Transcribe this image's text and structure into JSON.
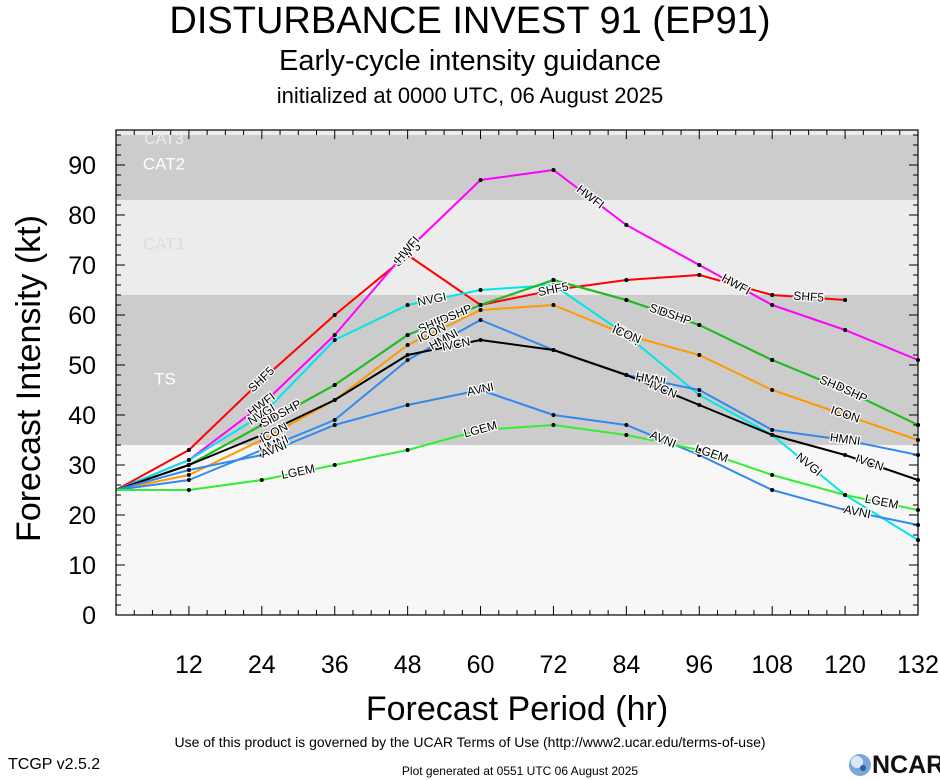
{
  "header": {
    "title": "DISTURBANCE INVEST 91 (EP91)",
    "subtitle": "Early-cycle intensity guidance",
    "init_line": "initialized at 0000 UTC, 06 August 2025"
  },
  "footer": {
    "terms": "Use of this product is governed by the UCAR Terms of Use (http://www2.ucar.edu/terms-of-use)",
    "version": "TCGP v2.5.2",
    "generated": "Plot generated at 0551 UTC   06 August 2025",
    "logo_text": "NCAR"
  },
  "chart_data": {
    "type": "line",
    "title": "DISTURBANCE INVEST 91 (EP91)",
    "subtitle": "Early-cycle intensity guidance",
    "xlabel": "Forecast Period (hr)",
    "ylabel": "Forecast Intensity (kt)",
    "xlim": [
      0,
      132
    ],
    "ylim": [
      0,
      97
    ],
    "xticks": [
      12,
      24,
      36,
      48,
      60,
      72,
      84,
      96,
      108,
      120,
      132
    ],
    "yticks": [
      0,
      10,
      20,
      30,
      40,
      50,
      60,
      70,
      80,
      90
    ],
    "bands": [
      {
        "label": "TS",
        "y0": 34,
        "y1": 64,
        "color": "#cccccc"
      },
      {
        "label": "CAT1",
        "y0": 64,
        "y1": 83,
        "color": "#ececec"
      },
      {
        "label": "CAT2",
        "y0": 83,
        "y1": 96,
        "color": "#cccccc"
      },
      {
        "label": "CAT3",
        "y0": 96,
        "y1": 97,
        "color": "#ececec"
      }
    ],
    "below_band_color": "#f7f7f7",
    "series": [
      {
        "name": "SHF5",
        "color": "#ff0000",
        "x": [
          0,
          12,
          24,
          36,
          48,
          60,
          72,
          84,
          96,
          108,
          120
        ],
        "y": [
          25,
          33,
          47,
          60,
          72,
          62,
          65,
          67,
          68,
          64,
          63
        ],
        "label_at": [
          24,
          48,
          72,
          114
        ]
      },
      {
        "name": "HWFI",
        "color": "#ff00ff",
        "x": [
          0,
          12,
          24,
          36,
          48,
          60,
          72,
          84,
          96,
          108,
          120,
          132
        ],
        "y": [
          25,
          31,
          42,
          56,
          73,
          87,
          89,
          78,
          70,
          62,
          57,
          51
        ],
        "label_at": [
          24,
          48,
          78,
          102
        ]
      },
      {
        "name": "NVGI",
        "color": "#00e6e6",
        "x": [
          0,
          12,
          24,
          36,
          48,
          60,
          72,
          84,
          96,
          108,
          120,
          132
        ],
        "y": [
          25,
          31,
          40,
          55,
          62,
          65,
          66,
          56,
          44,
          36,
          24,
          15
        ],
        "label_at": [
          24,
          52,
          84,
          114
        ]
      },
      {
        "name": "SHIP",
        "color": "#22bb22",
        "x": [
          0,
          12,
          24,
          36,
          48,
          60,
          72,
          84,
          96,
          108,
          120,
          132
        ],
        "y": [
          25,
          30,
          38,
          46,
          56,
          62,
          67,
          63,
          58,
          51,
          45,
          38
        ],
        "label_at": [
          26,
          52,
          90,
          118
        ]
      },
      {
        "name": "DSHP",
        "color": "#22bb22",
        "x": [
          0,
          12,
          24,
          36,
          48,
          60,
          72,
          84,
          96,
          108,
          120,
          132
        ],
        "y": [
          25,
          30,
          38,
          46,
          56,
          62,
          67,
          63,
          58,
          51,
          45,
          38
        ],
        "label_at": [
          28,
          56,
          92,
          121
        ]
      },
      {
        "name": "ICON",
        "color": "#ff9900",
        "x": [
          0,
          12,
          24,
          36,
          48,
          60,
          72,
          84,
          96,
          108,
          120,
          132
        ],
        "y": [
          25,
          28,
          35,
          43,
          54,
          61,
          62,
          56,
          52,
          45,
          40,
          35
        ],
        "label_at": [
          26,
          52,
          84,
          120
        ]
      },
      {
        "name": "HMNI",
        "color": "#3388ee",
        "x": [
          0,
          12,
          24,
          36,
          48,
          60,
          72,
          84,
          96,
          108,
          120,
          132
        ],
        "y": [
          25,
          27,
          33,
          39,
          51,
          59,
          53,
          48,
          45,
          37,
          35,
          32
        ],
        "label_at": [
          26,
          54,
          88,
          120
        ]
      },
      {
        "name": "IVCN",
        "color": "#000000",
        "x": [
          0,
          12,
          24,
          36,
          48,
          60,
          72,
          84,
          96,
          108,
          120,
          132
        ],
        "y": [
          25,
          30,
          36,
          43,
          52,
          55,
          53,
          48,
          42,
          36,
          32,
          27
        ],
        "label_at": [
          56,
          90,
          124
        ]
      },
      {
        "name": "AVNI",
        "color": "#3388ee",
        "x": [
          0,
          12,
          24,
          36,
          48,
          60,
          72,
          84,
          96,
          108,
          120,
          132
        ],
        "y": [
          25,
          29,
          32,
          38,
          42,
          45,
          40,
          38,
          32,
          25,
          21,
          18
        ],
        "label_at": [
          26,
          60,
          90,
          122
        ]
      },
      {
        "name": "LGEM",
        "color": "#33ee33",
        "x": [
          0,
          12,
          24,
          36,
          48,
          60,
          72,
          84,
          96,
          108,
          120,
          132
        ],
        "y": [
          25,
          25,
          27,
          30,
          33,
          37,
          38,
          36,
          33,
          28,
          24,
          21
        ],
        "label_at": [
          30,
          60,
          98,
          126
        ]
      }
    ]
  }
}
